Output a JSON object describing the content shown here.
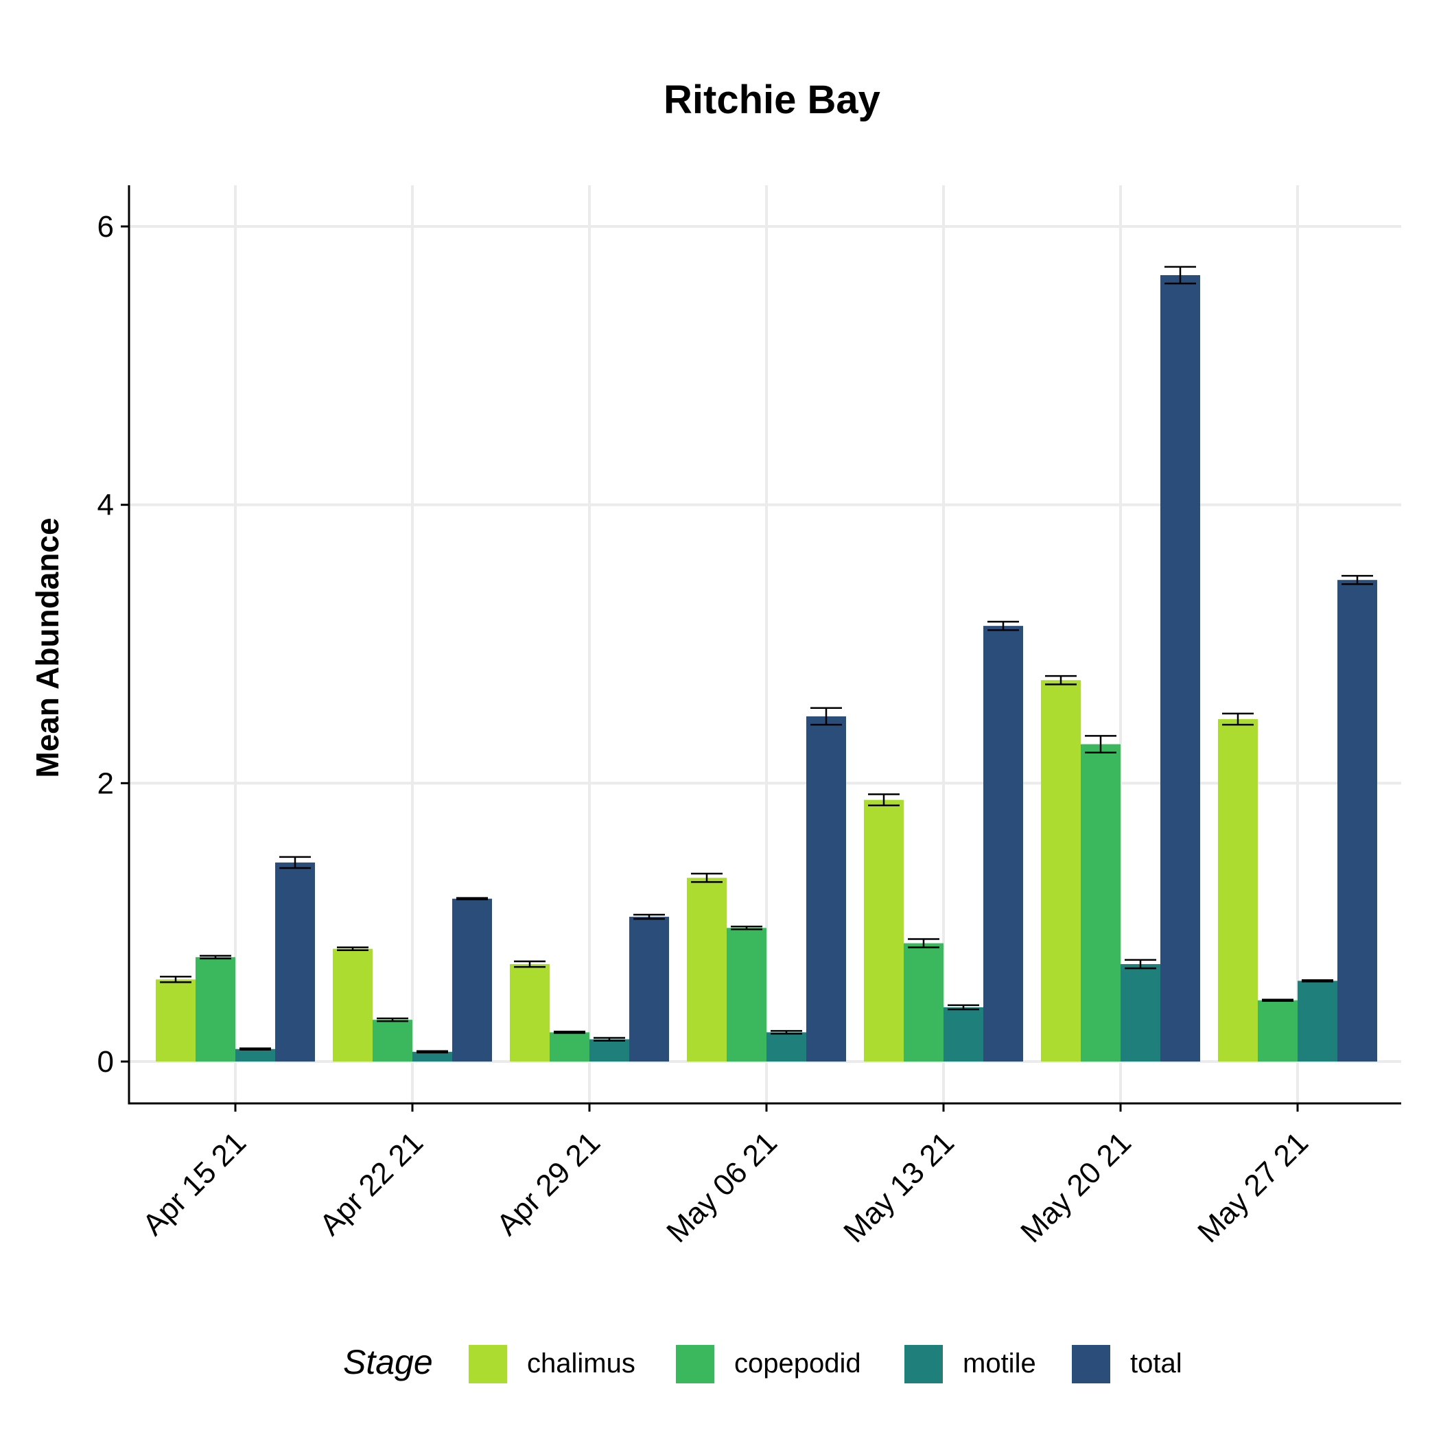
{
  "chart_data": {
    "type": "bar",
    "title": "Ritchie Bay",
    "xlabel": "",
    "ylabel": "Mean Abundance",
    "ylim": [
      -0.3,
      6.3
    ],
    "yticks": [
      0,
      2,
      4,
      6
    ],
    "grid": true,
    "legend": {
      "title": "Stage",
      "position": "bottom"
    },
    "categories": [
      "Apr 15 21",
      "Apr 22 21",
      "Apr 29 21",
      "May 06 21",
      "May 13 21",
      "May 20 21",
      "May 27 21"
    ],
    "series": [
      {
        "name": "chalimus",
        "color": "#addc30",
        "values": [
          0.59,
          0.81,
          0.7,
          1.32,
          1.88,
          2.74,
          2.46
        ],
        "errors": [
          0.02,
          0.01,
          0.02,
          0.03,
          0.04,
          0.03,
          0.04
        ]
      },
      {
        "name": "copepodid",
        "color": "#3bb75e",
        "values": [
          0.75,
          0.3,
          0.21,
          0.96,
          0.85,
          2.28,
          0.44
        ],
        "errors": [
          0.01,
          0.01,
          0.005,
          0.01,
          0.03,
          0.06,
          0.005
        ]
      },
      {
        "name": "motile",
        "color": "#1f7f7a",
        "values": [
          0.09,
          0.07,
          0.16,
          0.21,
          0.39,
          0.7,
          0.58
        ],
        "errors": [
          0.005,
          0.005,
          0.01,
          0.01,
          0.015,
          0.03,
          0.005
        ]
      },
      {
        "name": "total",
        "color": "#2a4d7a",
        "values": [
          1.43,
          1.17,
          1.04,
          2.48,
          3.13,
          5.65,
          3.46
        ],
        "errors": [
          0.04,
          0.005,
          0.015,
          0.06,
          0.03,
          0.06,
          0.03
        ]
      }
    ]
  }
}
